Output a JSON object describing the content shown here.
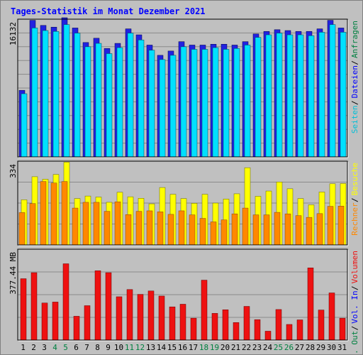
{
  "title": "Tages-Statistik im Monat Dezember 2021",
  "colors": {
    "background": "#c0c0c0",
    "title": "#0000ff",
    "anfragen": "#2222e0",
    "dateien": "#00e0ff",
    "seiten": "#00c0d8",
    "besuche": "#ffff00",
    "rechner": "#ff8800",
    "volumen": "#ee1111",
    "weekend_label": "#008040",
    "weekday_label": "#000000"
  },
  "chart_data": {
    "type": "bar",
    "x": [
      "1",
      "2",
      "3",
      "4",
      "5",
      "6",
      "7",
      "8",
      "9",
      "10",
      "11",
      "12",
      "13",
      "14",
      "15",
      "16",
      "17",
      "18",
      "19",
      "20",
      "21",
      "22",
      "23",
      "24",
      "25",
      "26",
      "27",
      "28",
      "29",
      "30",
      "31"
    ],
    "weekend_days": [
      "4",
      "5",
      "11",
      "12",
      "18",
      "19",
      "25",
      "26"
    ],
    "panels": [
      {
        "id": "hits",
        "ymax_label": "16132",
        "ymax": 16132,
        "legend": [
          {
            "text": "Anfragen",
            "color": "#008040"
          },
          {
            "text": "Dateien",
            "color": "#0000ff"
          },
          {
            "text": "Seiten",
            "color": "#00c0d8"
          }
        ],
        "series": [
          {
            "name": "Anfragen",
            "values": [
              7800,
              16000,
              15400,
              15200,
              16300,
              15100,
              13400,
              13900,
              12700,
              13300,
              15000,
              14300,
              13100,
              11900,
              12400,
              13500,
              13100,
              13100,
              13200,
              13200,
              13100,
              13500,
              14400,
              14700,
              14900,
              14800,
              14700,
              14700,
              15000,
              16000,
              15100
            ]
          },
          {
            "name": "Dateien",
            "values": [
              7400,
              15100,
              14800,
              14700,
              15500,
              14500,
              12900,
              13300,
              12100,
              12800,
              14500,
              13700,
              12500,
              11400,
              11900,
              12900,
              12600,
              12600,
              12800,
              12600,
              12700,
              13100,
              14000,
              14300,
              14500,
              14300,
              14300,
              14200,
              14600,
              15500,
              14600
            ]
          }
        ]
      },
      {
        "id": "visits",
        "ymax_label": "334",
        "ymax": 334,
        "legend": [
          {
            "text": "Besuche",
            "color": "#ffff00"
          },
          {
            "text": "Rechner",
            "color": "#ff8800"
          }
        ],
        "series": [
          {
            "name": "Besuche",
            "values": [
              180,
              272,
              262,
              281,
              330,
              185,
              195,
              191,
              170,
              210,
              192,
              186,
              164,
              229,
              202,
              185,
              166,
              202,
              167,
              183,
              204,
              308,
              194,
              215,
              251,
              224,
              185,
              160,
              211,
              244,
              245
            ]
          },
          {
            "name": "Rechner",
            "values": [
              129,
              165,
              253,
              247,
              253,
              147,
              170,
              170,
              134,
              172,
              121,
              134,
              136,
              132,
              122,
              136,
              120,
              106,
              92,
              100,
              124,
              147,
              120,
              120,
              130,
              124,
              117,
              110,
              125,
              154,
              155
            ]
          }
        ]
      },
      {
        "id": "volume",
        "ymax_label": "377.44 MB",
        "ymax": 377.44,
        "legend": [
          {
            "text": "Volumen",
            "color": "#ee1111"
          },
          {
            "text": "Vol. In",
            "color": "#0000ff"
          },
          {
            "text": "Vol. Out",
            "color": "#008040"
          }
        ],
        "series": [
          {
            "name": "Volumen",
            "values": [
              255,
              280,
              154,
              158,
              317,
              99,
              143,
              288,
              280,
              180,
              210,
              190,
              204,
              183,
              138,
              149,
              91,
              249,
              111,
              126,
              73,
              140,
              85,
              37,
              127,
              65,
              84,
              300,
              125,
              196,
              91
            ]
          }
        ]
      }
    ]
  }
}
